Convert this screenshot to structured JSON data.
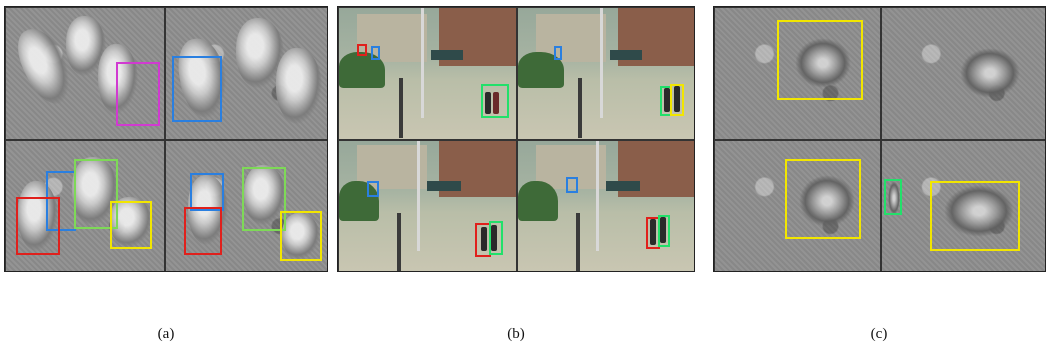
{
  "captions": {
    "a": "(a)",
    "b": "(b)",
    "c": "(c)"
  },
  "colors": {
    "red": "#e0201c",
    "blue": "#2a7fe0",
    "green": "#7ed957",
    "bright_green": "#22e06a",
    "yellow": "#f2e600",
    "magenta": "#d13ad1"
  }
}
